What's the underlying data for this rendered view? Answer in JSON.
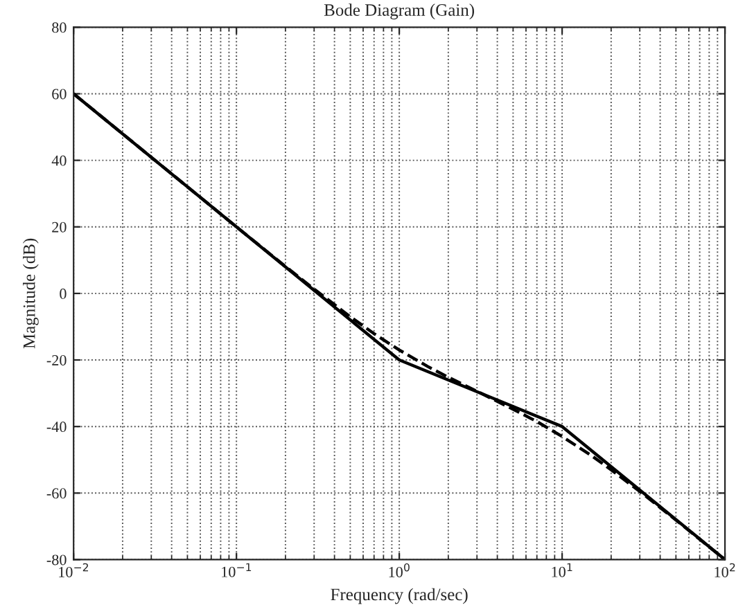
{
  "chart_data": {
    "type": "line",
    "title": "Bode Diagram (Gain)",
    "xlabel": "Frequency (rad/sec)",
    "ylabel": "Magnitude (dB)",
    "log": "x",
    "grid": true,
    "xlim": [
      0.01,
      100
    ],
    "ylim": [
      -80,
      80
    ],
    "xticks": [
      {
        "value": 0.01,
        "label": "10$^{−2}$"
      },
      {
        "value": 0.1,
        "label": "10$^{−1}$"
      },
      {
        "value": 1,
        "label": "10$^{0}$"
      },
      {
        "value": 10,
        "label": "10$^{1}$"
      },
      {
        "value": 100,
        "label": "10$^{2}$"
      }
    ],
    "yticks": [
      -80,
      -60,
      -40,
      -20,
      0,
      20,
      40,
      60,
      80
    ],
    "series": [
      {
        "color": "#000000",
        "line_style": "solid",
        "x": [
          0.01,
          1,
          10,
          100
        ],
        "values": [
          60,
          -20,
          -40,
          -80
        ]
      },
      {
        "color": "#000000",
        "line_style": "dashed",
        "x": [
          0.01,
          0.1,
          0.2,
          0.3,
          0.5,
          0.7,
          1,
          1.5,
          2,
          3,
          5,
          7,
          10,
          15,
          20,
          30,
          50,
          100
        ],
        "values": [
          60,
          20,
          8.1,
          1.3,
          -7.0,
          -12.1,
          -17.0,
          -22.0,
          -25.2,
          -29.4,
          -34.8,
          -38.5,
          -43.0,
          -48.6,
          -53.0,
          -59.5,
          -68.1,
          -80.0
        ]
      }
    ]
  }
}
